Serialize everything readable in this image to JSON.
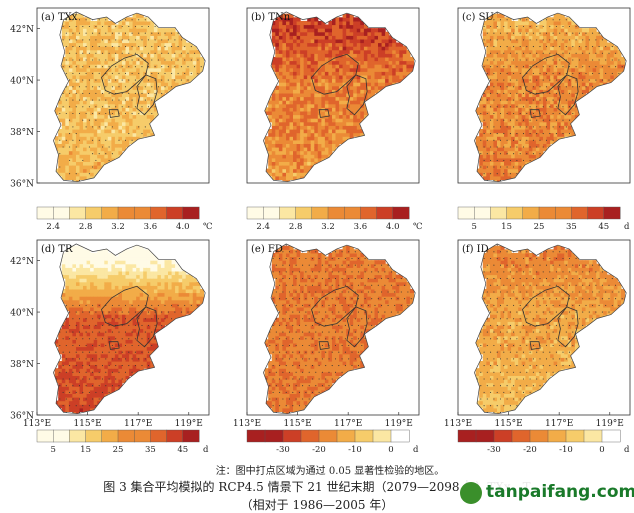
{
  "colors": {
    "background": "#ffffff",
    "warm_ramp": [
      "#fffbe6",
      "#fbe7a3",
      "#f6cc6a",
      "#f2ac48",
      "#eb8a36",
      "#e0652c",
      "#cc3f26",
      "#a82020"
    ],
    "cold_ramp": [
      "#a82020",
      "#cc3f26",
      "#e0652c",
      "#eb8a36",
      "#f2ac48",
      "#f6cc6a",
      "#fbe7a3",
      "#ffffff"
    ],
    "stipple": "#333333",
    "watermark_green": "#1a7a2a"
  },
  "chart_data": [
    {
      "type": "heatmap",
      "title": "(a) TXx",
      "lat_ticks": [
        "42°N",
        "40°N",
        "38°N",
        "36°N"
      ],
      "lon_ticks": [],
      "colorbar": {
        "ticks": [
          "2.4",
          "2.8",
          "3.2",
          "3.6",
          "4.0"
        ],
        "unit": "℃",
        "range": [
          2.2,
          4.2
        ],
        "bins": 10,
        "ramp": "warm"
      },
      "region_mean": 2.9,
      "north_anomaly": 0.0,
      "south_anomaly": 0.1,
      "noise": 0.25,
      "stipple": "partial"
    },
    {
      "type": "heatmap",
      "title": "(b) TNn",
      "lat_ticks": [],
      "lon_ticks": [],
      "colorbar": {
        "ticks": [
          "2.4",
          "2.8",
          "3.2",
          "3.6",
          "4.0"
        ],
        "unit": "℃",
        "range": [
          2.2,
          4.2
        ],
        "bins": 10,
        "ramp": "warm"
      },
      "region_mean": 3.4,
      "north_anomaly": 0.45,
      "south_anomaly": -0.2,
      "noise": 0.3,
      "stipple": "none"
    },
    {
      "type": "heatmap",
      "title": "(c) SU",
      "lat_ticks": [],
      "lon_ticks": [],
      "colorbar": {
        "ticks": [
          "5",
          "15",
          "25",
          "35",
          "45"
        ],
        "unit": "d",
        "range": [
          0,
          50
        ],
        "bins": 10,
        "ramp": "warm"
      },
      "region_mean": 28,
      "north_anomaly": -6,
      "south_anomaly": 2,
      "noise": 6,
      "stipple": "full"
    },
    {
      "type": "heatmap",
      "title": "(d) TR",
      "lat_ticks": [
        "42°N",
        "40°N",
        "38°N",
        "36°N"
      ],
      "lon_ticks": [
        "113°E",
        "115°E",
        "117°E",
        "119°E"
      ],
      "colorbar": {
        "ticks": [
          "5",
          "15",
          "25",
          "35",
          "45"
        ],
        "unit": "d",
        "range": [
          0,
          50
        ],
        "bins": 10,
        "ramp": "warm"
      },
      "region_mean": 36,
      "north_anomaly": -34,
      "south_anomaly": 4,
      "noise": 4,
      "stipple": "south"
    },
    {
      "type": "heatmap",
      "title": "(e) FD",
      "lat_ticks": [],
      "lon_ticks": [
        "113°E",
        "115°E",
        "117°E",
        "119°E"
      ],
      "colorbar": {
        "ticks": [
          "-30",
          "-20",
          "-10",
          "0"
        ],
        "unit": "d",
        "range": [
          -40,
          5
        ],
        "bins": 9,
        "ramp": "cold"
      },
      "region_mean": -22,
      "north_anomaly": 0,
      "south_anomaly": 0,
      "noise": 4,
      "stipple": "full"
    },
    {
      "type": "heatmap",
      "title": "(f) ID",
      "lat_ticks": [],
      "lon_ticks": [
        "113°E",
        "115°E",
        "117°E",
        "119°E"
      ],
      "colorbar": {
        "ticks": [
          "-30",
          "-20",
          "-10",
          "0"
        ],
        "unit": "d",
        "range": [
          -40,
          5
        ],
        "bins": 9,
        "ramp": "cold"
      },
      "region_mean": -15,
      "north_anomaly": -6,
      "south_anomaly": 4,
      "noise": 4,
      "stipple": "full"
    }
  ],
  "note": "注：图中打点区域为通过 0.05 显著性检验的地区。",
  "caption_line1": "图 3  集合平均模拟的 RCP4.5 情景下 21 世纪末期（2079—2098 年）TXx、T",
  "caption_line2": "（相对于 1986—2005 年）",
  "watermark": "tanpaifang.com"
}
